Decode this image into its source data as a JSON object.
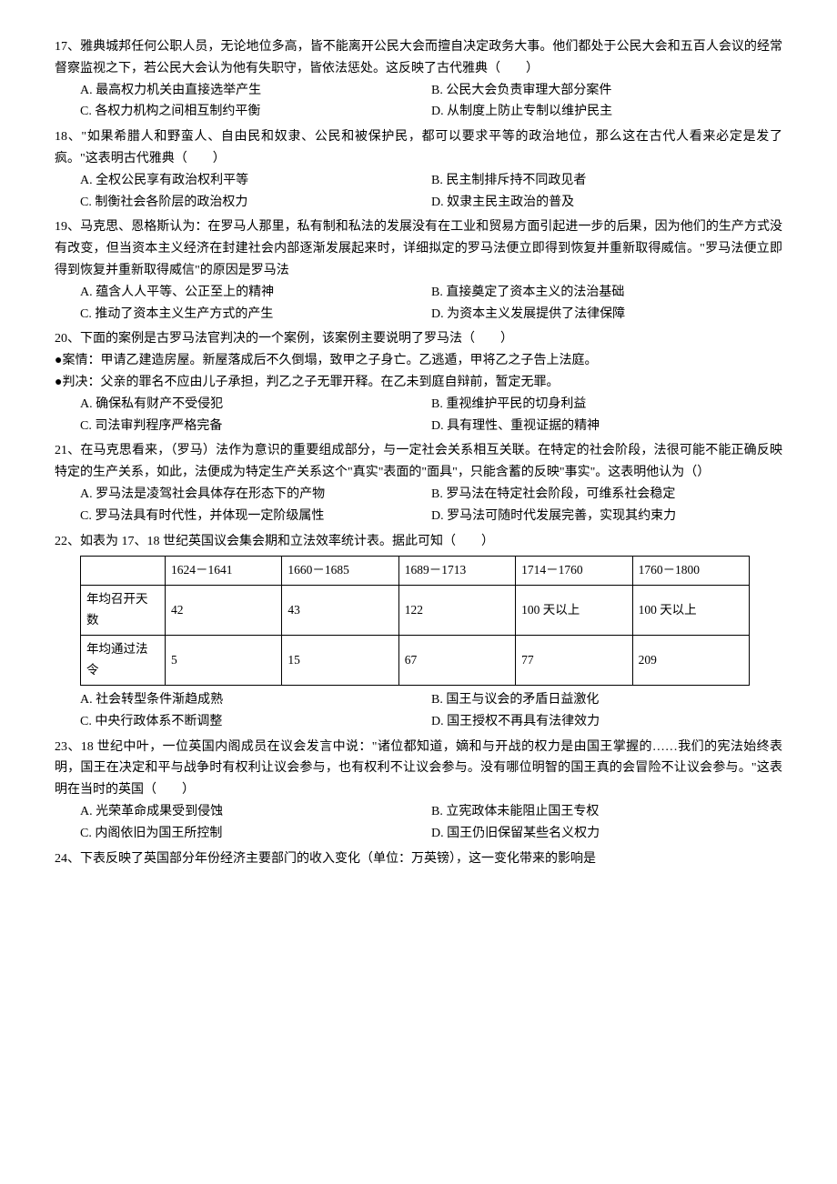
{
  "q17": {
    "text": "17、雅典城邦任何公职人员，无论地位多高，皆不能离开公民大会而擅自决定政务大事。他们都处于公民大会和五百人会议的经常督察监视之下，若公民大会认为他有失职守，皆依法惩处。这反映了古代雅典（　　）",
    "opts": {
      "A": "A.  最高权力机关由直接选举产生",
      "B": "B.  公民大会负责审理大部分案件",
      "C": "C.  各权力机构之间相互制约平衡",
      "D": "D.  从制度上防止专制以维护民主"
    }
  },
  "q18": {
    "text": "18、\"如果希腊人和野蛮人、自由民和奴隶、公民和被保护民，都可以要求平等的政治地位，那么这在古代人看来必定是发了疯。\"这表明古代雅典（　　）",
    "opts": {
      "A": "A.  全权公民享有政治权利平等",
      "B": "B.  民主制排斥持不同政见者",
      "C": "C.  制衡社会各阶层的政治权力",
      "D": "D.  奴隶主民主政治的普及"
    }
  },
  "q19": {
    "text": "19、马克思、恩格斯认为：在罗马人那里，私有制和私法的发展没有在工业和贸易方面引起进一步的后果，因为他们的生产方式没有改变，但当资本主义经济在封建社会内部逐渐发展起来时，详细拟定的罗马法便立即得到恢复并重新取得威信。\"罗马法便立即得到恢复并重新取得威信\"的原因是罗马法",
    "opts": {
      "A": "A.  蕴含人人平等、公正至上的精神",
      "B": "B.  直接奠定了资本主义的法治基础",
      "C": "C.  推动了资本主义生产方式的产生",
      "D": "D.  为资本主义发展提供了法律保障"
    }
  },
  "q20": {
    "text": "20、下面的案例是古罗马法官判决的一个案例，该案例主要说明了罗马法（　　）",
    "caseA": "●案情：甲请乙建造房屋。新屋落成后不久倒塌，致甲之子身亡。乙逃遁，甲将乙之子告上法庭。",
    "caseB": "●判决：父亲的罪名不应由儿子承担，判乙之子无罪开释。在乙未到庭自辩前，暂定无罪。",
    "opts": {
      "A": "A.  确保私有财产不受侵犯",
      "B": "B.  重视维护平民的切身利益",
      "C": "C.  司法审判程序严格完备",
      "D": "D.  具有理性、重视证据的精神"
    }
  },
  "q21": {
    "text": "21、在马克思看来，（罗马）法作为意识的重要组成部分，与一定社会关系相互关联。在特定的社会阶段，法很可能不能正确反映特定的生产关系，如此，法便成为特定生产关系这个\"真实\"表面的\"面具\"，只能含蓄的反映\"事实\"。这表明他认为（）",
    "opts": {
      "A": "A.  罗马法是凌驾社会具体存在形态下的产物",
      "B": "B.  罗马法在特定社会阶段，可维系社会稳定",
      "C": "C.  罗马法具有时代性，并体现一定阶级属性",
      "D": "D.  罗马法可随时代发展完善，实现其约束力"
    }
  },
  "q22": {
    "text": "22、如表为 17、18 世纪英国议会集会期和立法效率统计表。据此可知（　　）",
    "table": {
      "header": [
        "",
        "1624－1641",
        "1660－1685",
        "1689－1713",
        "1714－1760",
        "1760－1800"
      ],
      "rows": [
        [
          "年均召开天数",
          "42",
          "43",
          "122",
          "100 天以上",
          "100 天以上"
        ],
        [
          "年均通过法令",
          "5",
          "15",
          "67",
          "77",
          "209"
        ]
      ],
      "col_widths": [
        "80px",
        "auto",
        "auto",
        "auto",
        "auto",
        "auto"
      ]
    },
    "opts": {
      "A": "A.  社会转型条件渐趋成熟",
      "B": "B.  国王与议会的矛盾日益激化",
      "C": "C.  中央行政体系不断调整",
      "D": "D.  国王授权不再具有法律效力"
    }
  },
  "q23": {
    "text": "23、18 世纪中叶，一位英国内阁成员在议会发言中说：\"诸位都知道，嫡和与开战的权力是由国王掌握的……我们的宪法始终表明，国王在决定和平与战争时有权利让议会参与，也有权利不让议会参与。没有哪位明智的国王真的会冒险不让议会参与。\"这表明在当时的英国（　　）",
    "opts": {
      "A": "A.  光荣革命成果受到侵蚀",
      "B": "B.  立宪政体未能阻止国王专权",
      "C": "C.  内阁依旧为国王所控制",
      "D": "D.  国王仍旧保留某些名义权力"
    }
  },
  "q24": {
    "text": "24、下表反映了英国部分年份经济主要部门的收入变化（单位：万英镑），这一变化带来的影响是"
  }
}
